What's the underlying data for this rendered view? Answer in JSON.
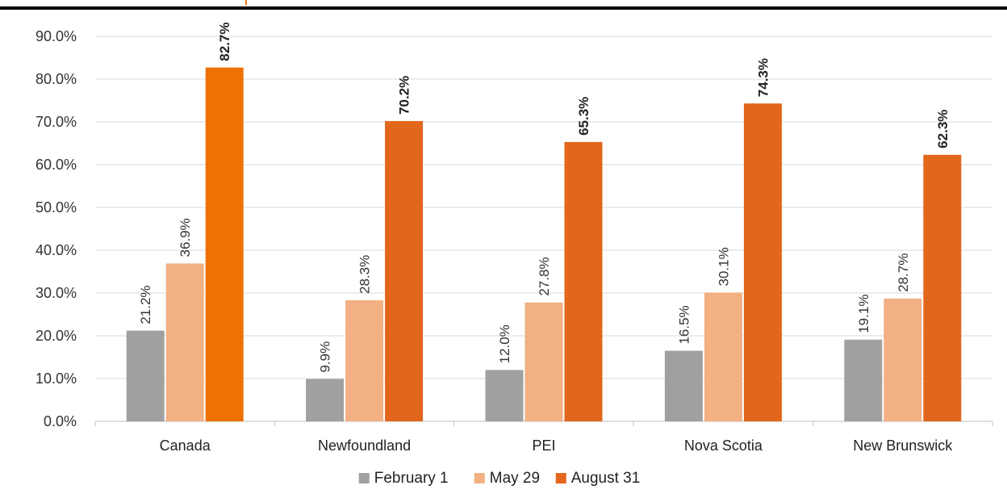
{
  "chart_data": {
    "type": "bar",
    "categories": [
      "Canada",
      "Newfoundland",
      "PEI",
      "Nova Scotia",
      "New Brunswick"
    ],
    "series": [
      {
        "name": "February 1",
        "values": [
          21.2,
          9.9,
          12.0,
          16.5,
          19.1
        ],
        "color": "#A0A0A0"
      },
      {
        "name": "May 29",
        "values": [
          36.9,
          28.3,
          27.8,
          30.1,
          28.7
        ],
        "color": "#F2B083"
      },
      {
        "name": "August 31",
        "values": [
          82.7,
          70.2,
          65.3,
          74.3,
          62.3
        ],
        "color": "#E2661C"
      }
    ],
    "canada_august_color": "#ED7103",
    "y_ticks": [
      "0.0%",
      "10.0%",
      "20.0%",
      "30.0%",
      "40.0%",
      "50.0%",
      "60.0%",
      "70.0%",
      "80.0%",
      "90.0%"
    ],
    "ylim": [
      0,
      90
    ],
    "grid": true,
    "legend_position": "bottom",
    "data_labels": "rotated vertical, percent with one decimal; August 31 bold"
  }
}
